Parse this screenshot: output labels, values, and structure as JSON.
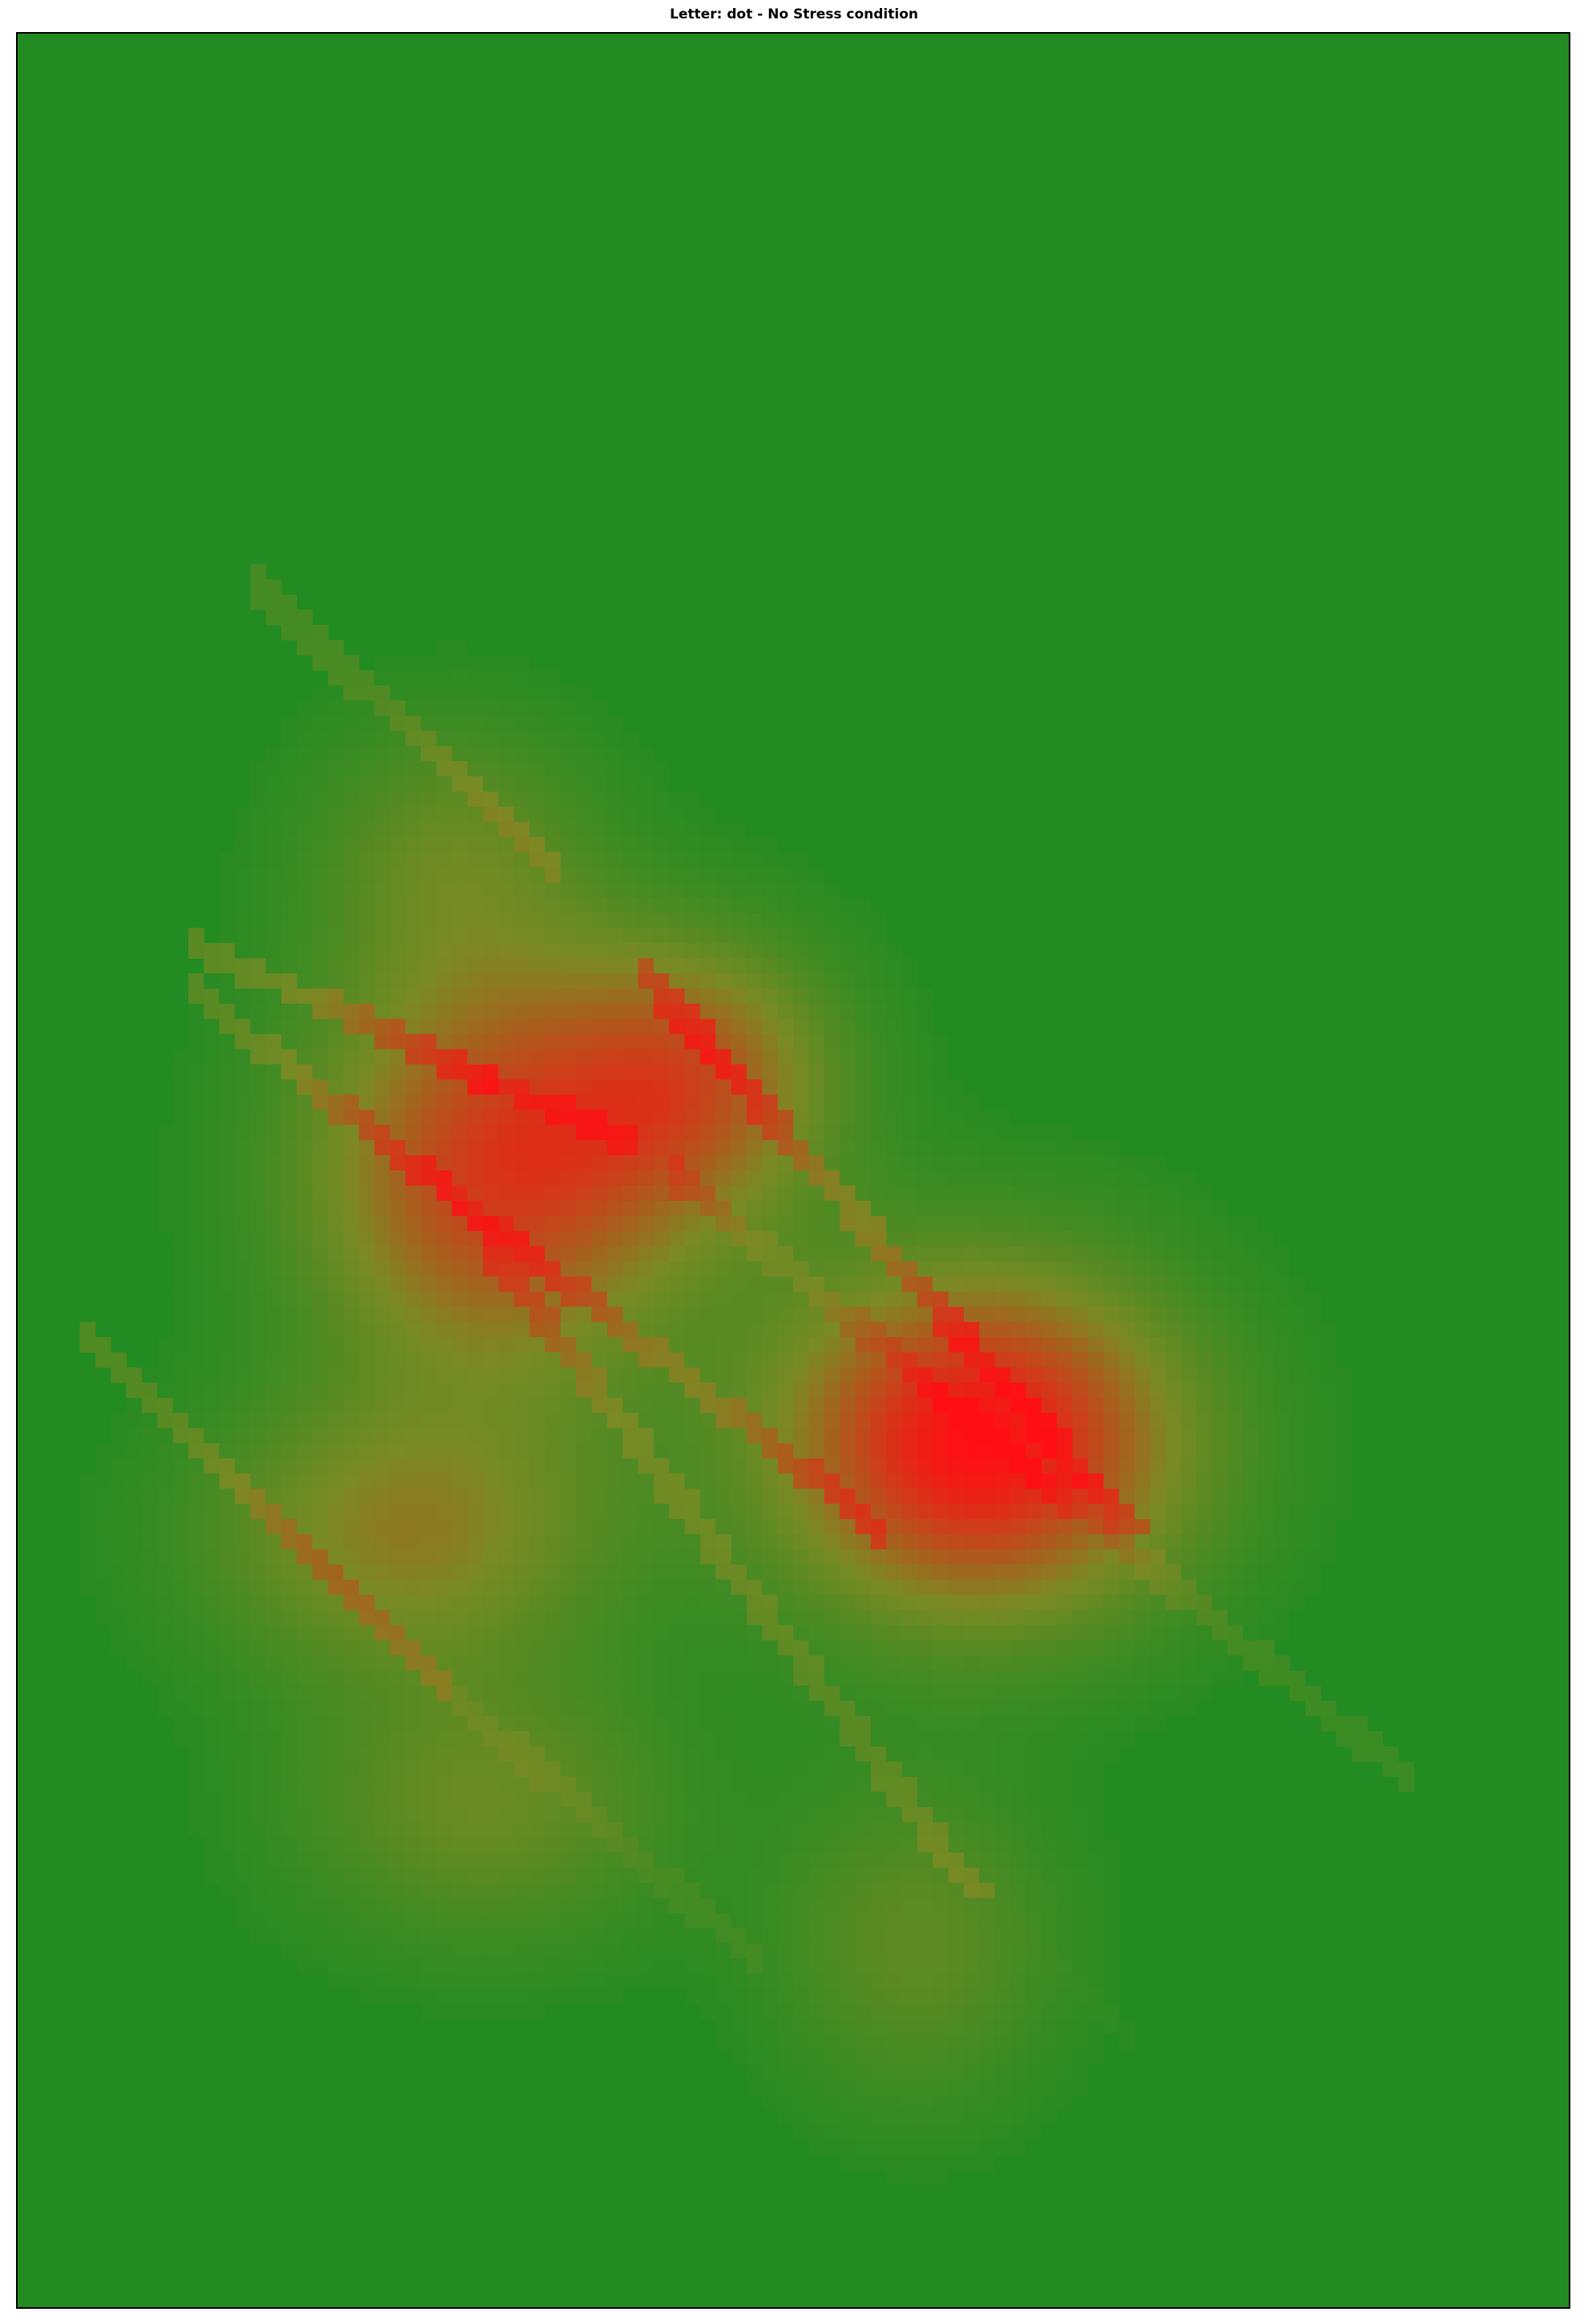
{
  "chart_data": {
    "type": "heatmap",
    "title": "Letter: dot - No Stress condition",
    "xlabel": "",
    "ylabel": "",
    "grid": false,
    "legend": "none",
    "colors": {
      "low": "#228B22",
      "mid": "#7A8A24",
      "high": "#FF0F14",
      "frame": "#000000"
    },
    "hotspots": [
      {
        "x": 0.62,
        "y": 0.62,
        "sx": 0.13,
        "sy": 0.075,
        "w": 1.0
      },
      {
        "x": 0.31,
        "y": 0.5,
        "sx": 0.12,
        "sy": 0.09,
        "w": 0.78
      },
      {
        "x": 0.25,
        "y": 0.66,
        "sx": 0.13,
        "sy": 0.06,
        "w": 0.45
      },
      {
        "x": 0.44,
        "y": 0.46,
        "sx": 0.09,
        "sy": 0.06,
        "w": 0.55
      },
      {
        "x": 0.58,
        "y": 0.84,
        "sx": 0.09,
        "sy": 0.07,
        "w": 0.28
      },
      {
        "x": 0.3,
        "y": 0.78,
        "sx": 0.12,
        "sy": 0.06,
        "w": 0.32
      },
      {
        "x": 0.28,
        "y": 0.36,
        "sx": 0.09,
        "sy": 0.06,
        "w": 0.28
      }
    ],
    "stripes": [
      {
        "x0": 0.15,
        "y0": 0.24,
        "x1": 0.35,
        "y1": 0.37,
        "w": 0.55
      },
      {
        "x0": 0.35,
        "y0": 0.38,
        "x1": 0.4,
        "y1": 0.41,
        "w": 0.02
      },
      {
        "x0": 0.4,
        "y0": 0.41,
        "x1": 0.72,
        "y1": 0.66,
        "w": 0.85
      },
      {
        "x0": 0.11,
        "y0": 0.4,
        "x1": 0.4,
        "y1": 0.49,
        "w": 0.85
      },
      {
        "x0": 0.42,
        "y0": 0.5,
        "x1": 0.9,
        "y1": 0.77,
        "w": 0.4
      },
      {
        "x0": 0.11,
        "y0": 0.42,
        "x1": 0.56,
        "y1": 0.66,
        "w": 0.75
      },
      {
        "x0": 0.04,
        "y0": 0.57,
        "x1": 0.28,
        "y1": 0.73,
        "w": 0.7
      },
      {
        "x0": 0.28,
        "y0": 0.73,
        "x1": 0.48,
        "y1": 0.85,
        "w": 0.25
      },
      {
        "x0": 0.3,
        "y0": 0.53,
        "x1": 0.62,
        "y1": 0.82,
        "w": 0.6
      },
      {
        "x0": 0.64,
        "y0": 0.83,
        "x1": 0.82,
        "y1": 0.95,
        "w": 0.05
      }
    ]
  }
}
